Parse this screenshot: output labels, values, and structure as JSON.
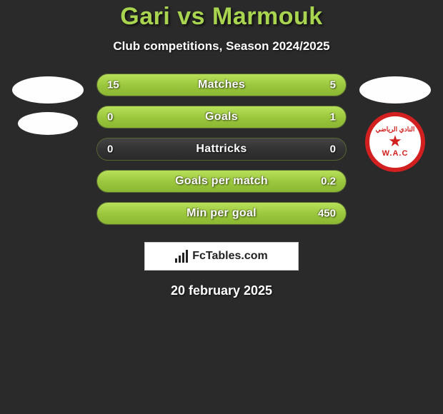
{
  "background_color": "#2a2a2a",
  "title": "Gari vs Marmouk",
  "title_color": "#a9d450",
  "title_fontsize": 34,
  "subtitle": "Club competitions, Season 2024/2025",
  "subtitle_color": "#ffffff",
  "subtitle_fontsize": 17,
  "date": "20 february 2025",
  "branding_text": "FcTables.com",
  "left_player": {
    "has_photo": false,
    "has_club": false
  },
  "right_player": {
    "has_photo": false,
    "club": {
      "name": "WAC",
      "arabic": "النادي الرياضي",
      "label": "W.A.C",
      "ring_color": "#d21f1f",
      "bg_color": "#ffffff"
    }
  },
  "bars": {
    "fill_gradient_top": "#b8e05a",
    "fill_gradient_mid": "#9cc83e",
    "fill_gradient_bot": "#8ab632",
    "neutral_gradient_top": "#444444",
    "neutral_gradient_bot": "#2a2a2a",
    "border_color": "#556633",
    "text_color": "#ffffff",
    "height": 32,
    "radius": 16,
    "label_fontsize": 16,
    "value_fontsize": 15,
    "items": [
      {
        "label": "Matches",
        "left": "15",
        "right": "5",
        "left_pct": 75,
        "right_pct": 25
      },
      {
        "label": "Goals",
        "left": "0",
        "right": "1",
        "left_pct": 0,
        "right_pct": 100
      },
      {
        "label": "Hattricks",
        "left": "0",
        "right": "0",
        "left_pct": 0,
        "right_pct": 0
      },
      {
        "label": "Goals per match",
        "left": "",
        "right": "0.2",
        "left_pct": 0,
        "right_pct": 100
      },
      {
        "label": "Min per goal",
        "left": "",
        "right": "450",
        "left_pct": 0,
        "right_pct": 100
      }
    ]
  }
}
